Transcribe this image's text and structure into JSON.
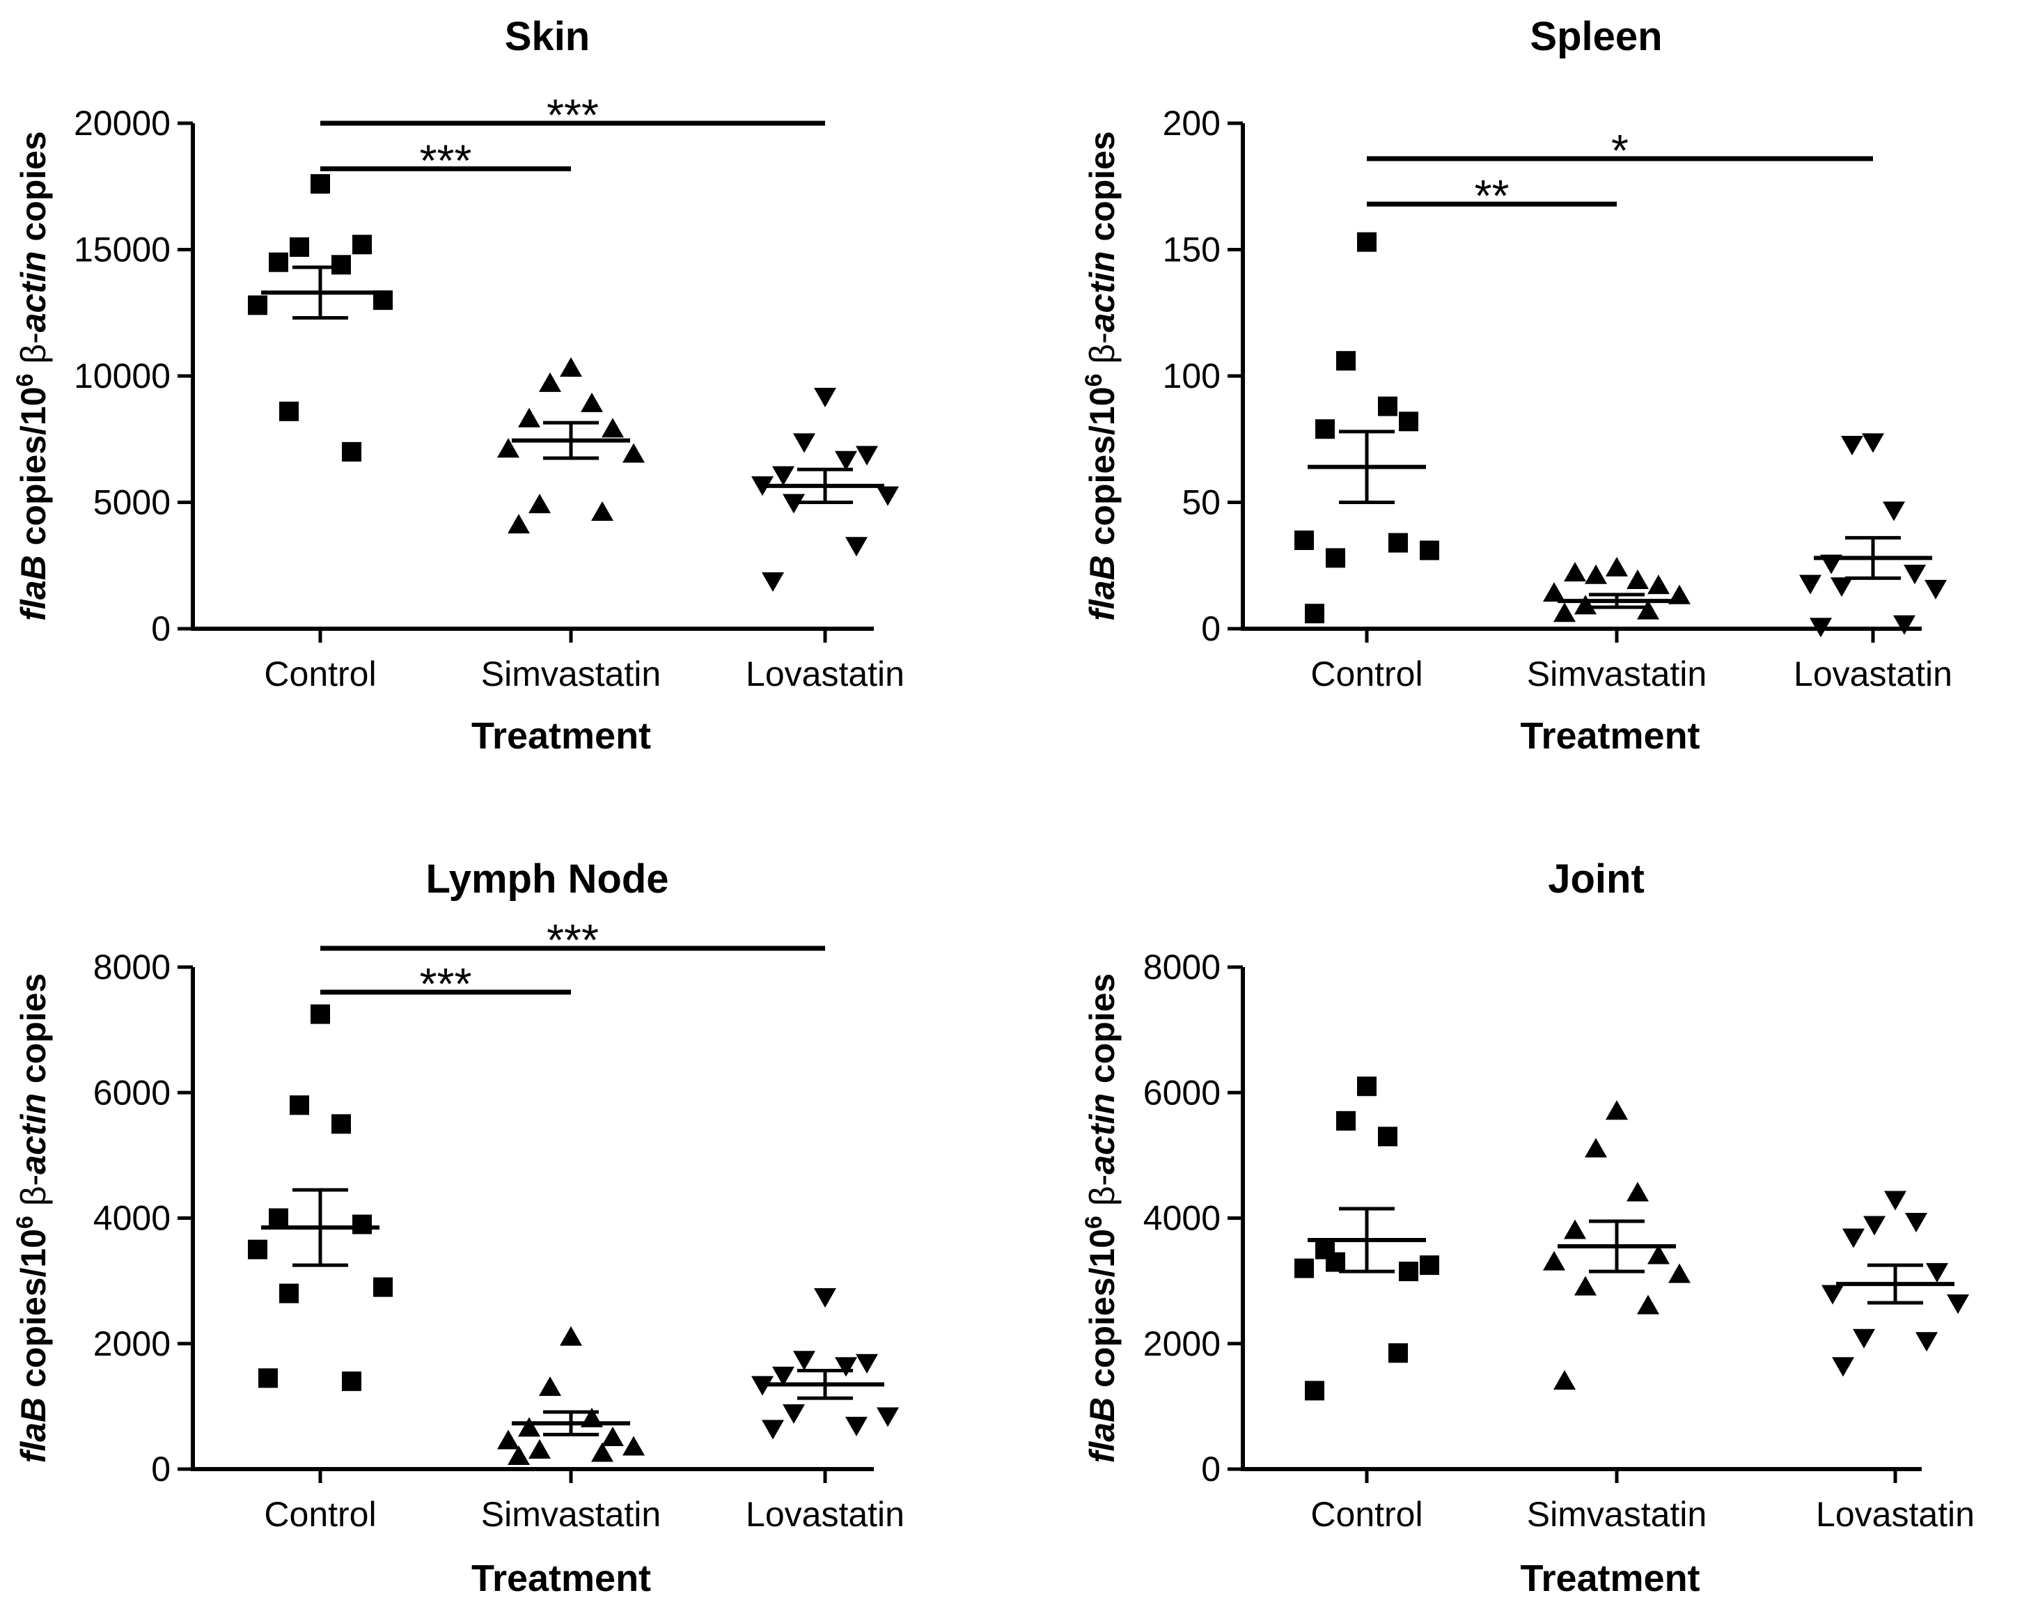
{
  "chart_data": [
    {
      "type": "scatter",
      "title": "Skin",
      "xlabel": "Treatment",
      "ylabel": {
        "gene": "flaB",
        "copies": "copies/10",
        "exp": "6",
        "beta": "β-",
        "actin": "actin",
        "tail": "copies"
      },
      "ylim": [
        0,
        20000
      ],
      "yticks": [
        0,
        5000,
        10000,
        15000,
        20000
      ],
      "categories": [
        "Control",
        "Simvastatin",
        "Lovastatin"
      ],
      "series": [
        {
          "category": "Control",
          "marker": "square",
          "values": [
            17600,
            15100,
            14400,
            14500,
            15200,
            12800,
            13000,
            8600,
            7000
          ],
          "mean": 13300,
          "sem": 1000
        },
        {
          "category": "Simvastatin",
          "marker": "triangle-up",
          "values": [
            10300,
            9700,
            8900,
            8300,
            7900,
            7100,
            6900,
            4900,
            4600,
            4100
          ],
          "mean": 7450,
          "sem": 700
        },
        {
          "category": "Lovastatin",
          "marker": "triangle-down",
          "values": [
            9200,
            7400,
            6700,
            6100,
            6900,
            5700,
            5300,
            5000,
            3300,
            1900
          ],
          "mean": 5650,
          "sem": 650
        }
      ],
      "significance": [
        {
          "from": "Control",
          "to": "Simvastatin",
          "y": 18200,
          "label": "***"
        },
        {
          "from": "Control",
          "to": "Lovastatin",
          "y": 20000,
          "label": "***"
        }
      ]
    },
    {
      "type": "scatter",
      "title": "Spleen",
      "xlabel": "Treatment",
      "ylabel": {
        "gene": "flaB",
        "copies": "copies/10",
        "exp": "6",
        "beta": "β-",
        "actin": "actin",
        "tail": "copies"
      },
      "ylim": [
        0,
        200
      ],
      "yticks": [
        0,
        50,
        100,
        150,
        200
      ],
      "categories": [
        "Control",
        "Simvastatin",
        "Lovastatin"
      ],
      "series": [
        {
          "category": "Control",
          "marker": "square",
          "values": [
            153,
            106,
            88,
            79,
            82,
            35,
            31,
            28,
            34,
            6
          ],
          "mean": 64,
          "sem": 14
        },
        {
          "category": "Simvastatin",
          "marker": "triangle-up",
          "values": [
            24,
            21,
            19,
            22,
            17,
            14,
            13,
            9,
            7,
            6
          ],
          "mean": 11,
          "sem": 2.5
        },
        {
          "category": "Lovastatin",
          "marker": "triangle-down",
          "values": [
            74,
            73,
            47,
            26,
            22,
            18,
            16,
            17,
            2,
            1
          ],
          "mean": 28,
          "sem": 8
        },
        {
          "category": "Lovastatin",
          "marker": "none",
          "values": []
        }
      ],
      "significance": [
        {
          "from": "Control",
          "to": "Simvastatin",
          "y": 168,
          "label": "**"
        },
        {
          "from": "Control",
          "to": "Lovastatin",
          "y": 186,
          "label": "*"
        }
      ]
    },
    {
      "type": "scatter",
      "title": "Lymph Node",
      "xlabel": "Treatment",
      "ylabel": {
        "gene": "flaB",
        "copies": "copies/10",
        "exp": "6",
        "beta": "β-",
        "actin": "actin",
        "tail": "copies"
      },
      "ylim": [
        0,
        8000
      ],
      "yticks": [
        0,
        2000,
        4000,
        6000,
        8000
      ],
      "categories": [
        "Control",
        "Simvastatin",
        "Lovastatin"
      ],
      "series": [
        {
          "category": "Control",
          "marker": "square",
          "values": [
            7250,
            5800,
            5500,
            4000,
            3900,
            3500,
            2900,
            2800,
            1400,
            1450
          ],
          "mean": 3850,
          "sem": 600
        },
        {
          "category": "Simvastatin",
          "marker": "triangle-up",
          "values": [
            2100,
            1300,
            800,
            650,
            500,
            450,
            350,
            300,
            250,
            200
          ],
          "mean": 730,
          "sem": 180
        },
        {
          "category": "Lovastatin",
          "marker": "triangle-down",
          "values": [
            2750,
            1750,
            1650,
            1500,
            1700,
            1350,
            850,
            900,
            700,
            650
          ],
          "mean": 1350,
          "sem": 220
        }
      ],
      "significance": [
        {
          "from": "Control",
          "to": "Simvastatin",
          "y": 7600,
          "label": "***"
        },
        {
          "from": "Control",
          "to": "Lovastatin",
          "y": 8300,
          "label": "***"
        }
      ]
    },
    {
      "type": "scatter",
      "title": "Joint",
      "xlabel": "Treatment",
      "ylabel": {
        "gene": "flaB",
        "copies": "copies/10",
        "exp": "6",
        "beta": "β-",
        "actin": "actin",
        "tail": "copies"
      },
      "ylim": [
        0,
        8000
      ],
      "yticks": [
        0,
        2000,
        4000,
        6000,
        8000
      ],
      "categories": [
        "Control",
        "Simvastatin",
        "Lovastatin"
      ],
      "series": [
        {
          "category": "Control",
          "marker": "square",
          "values": [
            6100,
            5550,
            5300,
            3500,
            3150,
            3200,
            3250,
            3300,
            1850,
            1250
          ],
          "mean": 3650,
          "sem": 500
        },
        {
          "category": "Simvastatin",
          "marker": "triangle-up",
          "values": [
            5700,
            5100,
            4400,
            3800,
            3400,
            3300,
            3100,
            2900,
            2600,
            1400
          ],
          "mean": 3550,
          "sem": 400
        },
        {
          "category": "Lovastatin",
          "marker": "triangle-down",
          "values": [
            4300,
            3900,
            3950,
            3700,
            3150,
            2800,
            2650,
            2100,
            2050,
            1650
          ],
          "mean": 2950,
          "sem": 300
        }
      ],
      "significance": []
    }
  ]
}
